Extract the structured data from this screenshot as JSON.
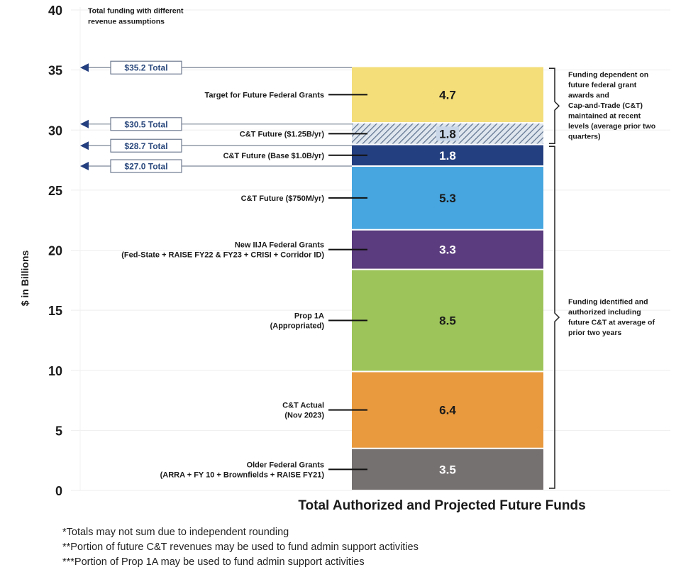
{
  "chart_data": {
    "type": "bar",
    "stacked": true,
    "title": "",
    "xlabel": "Total Authorized and Projected Future Funds",
    "ylabel": "$ in Billions",
    "ylim": [
      0,
      40
    ],
    "yticks": [
      0,
      5,
      10,
      15,
      20,
      25,
      30,
      35,
      40
    ],
    "grid": true,
    "series": [
      {
        "name": "Older Federal Grants\n(ARRA + FY 10 + Brownfields + RAISE FY21)",
        "value": 3.5,
        "color": "#767171",
        "label_color": "#ffffff"
      },
      {
        "name": "C&T Actual\n(Nov 2023)",
        "value": 6.4,
        "color": "#E99A3F",
        "label_color": "#1a1a1a"
      },
      {
        "name": "Prop 1A\n(Appropriated)",
        "value": 8.5,
        "color": "#9DC45A",
        "label_color": "#1a1a1a"
      },
      {
        "name": "New IIJA Federal Grants\n(Fed-State + RAISE FY22 & FY23 + CRISI + Corridor ID)",
        "value": 3.3,
        "color": "#5B3C7E",
        "label_color": "#ffffff"
      },
      {
        "name": "C&T Future ($750M/yr)",
        "value": 5.3,
        "color": "#47A6E0",
        "label_color": "#1a1a1a"
      },
      {
        "name": "C&T Future (Base $1.0B/yr)",
        "value": 1.8,
        "color": "#243F7F",
        "label_color": "#ffffff"
      },
      {
        "name": "C&T Future ($1.25B/yr)",
        "value": 1.8,
        "color": "hatched",
        "label_color": "#1a1a1a"
      },
      {
        "name": "Target for Future Federal Grants",
        "value": 4.7,
        "color": "#F3DE7A",
        "label_color": "#1a1a1a"
      }
    ],
    "totals_title": "Total funding with different\nrevenue assumptions",
    "totals": [
      {
        "label": "$35.2 Total",
        "value": 35.2
      },
      {
        "label": "$30.5 Total",
        "value": 30.5
      },
      {
        "label": "$28.7 Total",
        "value": 28.7
      },
      {
        "label": "$27.0 Total",
        "value": 27.0
      }
    ],
    "brackets": [
      {
        "range": [
          28.7,
          35.2
        ],
        "text": "Funding dependent on\nfuture federal grant\nawards and\nCap-and-Trade (C&T)\nmaintained at recent\nlevels (average prior two\nquarters)"
      },
      {
        "range": [
          0,
          28.7
        ],
        "text": "Funding identified and\nauthorized including\nfuture C&T at average of\nprior two years"
      }
    ],
    "arrow_color": "#243F7F"
  },
  "footnotes": [
    "*Totals may not sum due to independent rounding",
    "**Portion of future C&T revenues may be used to fund admin support activities",
    "***Portion of  Prop 1A may be used to fund admin support activities"
  ]
}
